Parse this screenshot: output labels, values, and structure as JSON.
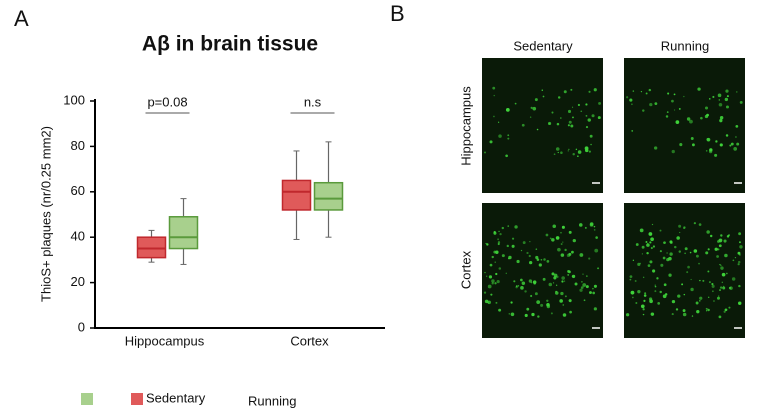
{
  "panel_a": {
    "label": "A"
  },
  "panel_b": {
    "label": "B",
    "columns": [
      "Sedentary",
      "Running"
    ],
    "rows": [
      "Hippocampus",
      "Cortex"
    ]
  },
  "chart_data": {
    "type": "box",
    "title": "Aβ in brain tissue",
    "y_label": "ThioS+ plaques (nr/0.25 mm2)",
    "categories": [
      "Hippocampus",
      "Cortex"
    ],
    "annotations": [
      "p=0.08",
      "n.s"
    ],
    "series": [
      {
        "name": "Sedentary",
        "color": "#e05a5a",
        "edge": "#c0282d",
        "values": [
          {
            "low": 29,
            "q1": 31,
            "median": 35,
            "q3": 40,
            "high": 43
          },
          {
            "low": 39,
            "q1": 52,
            "median": 60,
            "q3": 65,
            "high": 78
          }
        ]
      },
      {
        "name": "Running",
        "color": "#a8d08d",
        "edge": "#5a9a3c",
        "values": [
          {
            "low": 28,
            "q1": 35,
            "median": 40,
            "q3": 49,
            "high": 57
          },
          {
            "low": 40,
            "q1": 52,
            "median": 57,
            "q3": 64,
            "high": 82
          }
        ]
      }
    ],
    "ylim": [
      0,
      100
    ],
    "yticks": [
      0,
      20,
      40,
      60,
      80,
      100
    ],
    "grid": false
  }
}
